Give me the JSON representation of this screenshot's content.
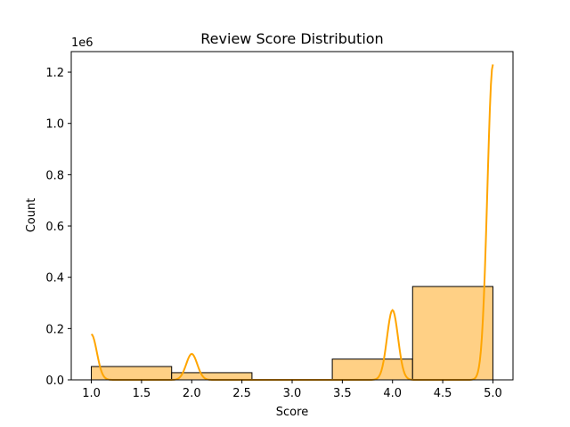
{
  "chart_data": {
    "type": "bar",
    "title": "Review Score Distribution",
    "xlabel": "Score",
    "ylabel": "Count",
    "y_offset_label": "1e6",
    "xlim": [
      0.8,
      5.2
    ],
    "ylim": [
      0,
      1.28
    ],
    "x_ticks": [
      1.0,
      1.5,
      2.0,
      2.5,
      3.0,
      3.5,
      4.0,
      4.5,
      5.0
    ],
    "x_tick_labels": [
      "1.0",
      "1.5",
      "2.0",
      "2.5",
      "3.0",
      "3.5",
      "4.0",
      "4.5",
      "5.0"
    ],
    "y_ticks": [
      0.0,
      0.2,
      0.4,
      0.6,
      0.8,
      1.0,
      1.2
    ],
    "y_tick_labels": [
      "0.0",
      "0.2",
      "0.4",
      "0.6",
      "0.8",
      "1.0",
      "1.2"
    ],
    "bins": [
      {
        "x0": 1.0,
        "x1": 1.8,
        "count": 0.052
      },
      {
        "x0": 1.8,
        "x1": 2.6,
        "count": 0.028
      },
      {
        "x0": 2.6,
        "x1": 3.4,
        "count": 0.0
      },
      {
        "x0": 3.4,
        "x1": 4.2,
        "count": 0.081
      },
      {
        "x0": 4.2,
        "x1": 5.0,
        "count": 0.364
      }
    ],
    "kde_peaks": [
      {
        "x": 1.0,
        "y": 0.178,
        "sd": 0.055
      },
      {
        "x": 2.0,
        "y": 0.101,
        "sd": 0.055
      },
      {
        "x": 4.0,
        "y": 0.272,
        "sd": 0.055
      },
      {
        "x": 5.0,
        "y": 1.23,
        "sd": 0.055
      }
    ],
    "bar_color": "#ffd085",
    "kde_color": "#ffa500",
    "grid": false
  }
}
